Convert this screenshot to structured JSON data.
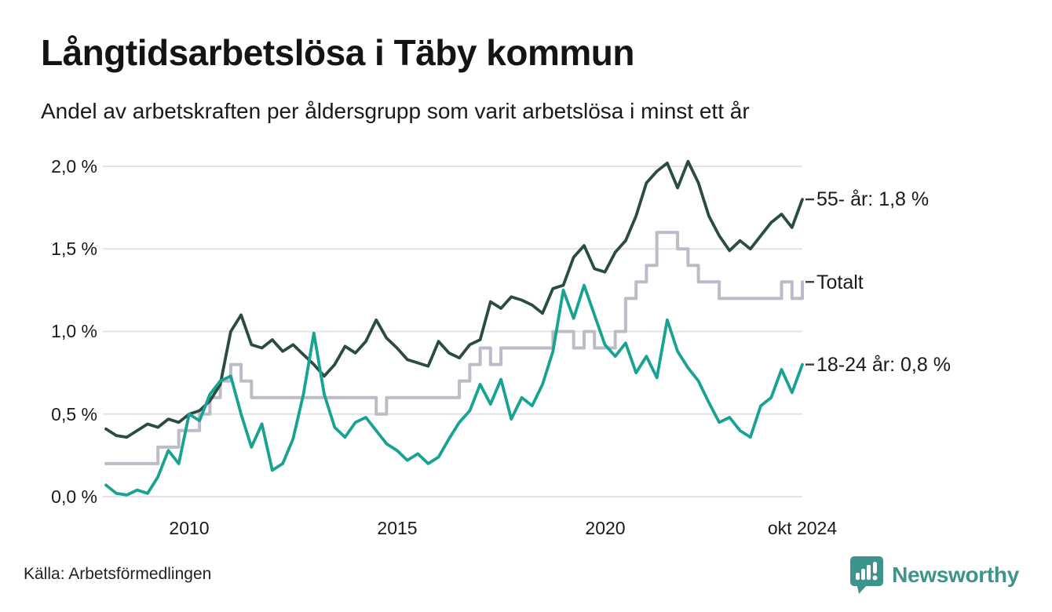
{
  "chart_data": {
    "type": "line",
    "title": "Långtidsarbetslösa i Täby kommun",
    "subtitle": "Andel av arbetskraften per åldersgrupp som varit arbetslösa i minst ett år",
    "grid": "horizontal",
    "legend_position": "right-end-labels",
    "y_range": [
      0.0,
      2.0
    ],
    "x_range": [
      2008.0,
      2024.75
    ],
    "y_ticks": [
      "2,0 %",
      "1,5 %",
      "1,0 %",
      "0,5 %",
      "0,0 %"
    ],
    "y_tick_values": [
      2.0,
      1.5,
      1.0,
      0.5,
      0.0
    ],
    "x_ticks": [
      {
        "label": "2010",
        "year": 2010
      },
      {
        "label": "2015",
        "year": 2015
      },
      {
        "label": "2020",
        "year": 2020
      },
      {
        "label": "okt 2024",
        "year": 2024.75
      }
    ],
    "x": [
      2008.0,
      2008.25,
      2008.5,
      2008.75,
      2009.0,
      2009.25,
      2009.5,
      2009.75,
      2010.0,
      2010.25,
      2010.5,
      2010.75,
      2011.0,
      2011.25,
      2011.5,
      2011.75,
      2012.0,
      2012.25,
      2012.5,
      2012.75,
      2013.0,
      2013.25,
      2013.5,
      2013.75,
      2014.0,
      2014.25,
      2014.5,
      2014.75,
      2015.0,
      2015.25,
      2015.5,
      2015.75,
      2016.0,
      2016.25,
      2016.5,
      2016.75,
      2017.0,
      2017.25,
      2017.5,
      2017.75,
      2018.0,
      2018.25,
      2018.5,
      2018.75,
      2019.0,
      2019.25,
      2019.5,
      2019.75,
      2020.0,
      2020.25,
      2020.5,
      2020.75,
      2021.0,
      2021.25,
      2021.5,
      2021.75,
      2022.0,
      2022.25,
      2022.5,
      2022.75,
      2023.0,
      2023.25,
      2023.5,
      2023.75,
      2024.0,
      2024.25,
      2024.5,
      2024.75
    ],
    "series": [
      {
        "id": "totalt",
        "name": "Totalt",
        "label": "Totalt",
        "color": "#bcbbc8",
        "width": 4,
        "step": true,
        "end_value": 1.3,
        "values": [
          0.2,
          0.2,
          0.2,
          0.2,
          0.2,
          0.3,
          0.3,
          0.4,
          0.4,
          0.5,
          0.6,
          0.7,
          0.8,
          0.7,
          0.6,
          0.6,
          0.6,
          0.6,
          0.6,
          0.6,
          0.6,
          0.6,
          0.6,
          0.6,
          0.6,
          0.6,
          0.5,
          0.6,
          0.6,
          0.6,
          0.6,
          0.6,
          0.6,
          0.6,
          0.7,
          0.8,
          0.9,
          0.8,
          0.9,
          0.9,
          0.9,
          0.9,
          0.9,
          1.0,
          1.0,
          0.9,
          1.0,
          0.9,
          0.9,
          1.0,
          1.2,
          1.3,
          1.4,
          1.6,
          1.6,
          1.5,
          1.4,
          1.3,
          1.3,
          1.2,
          1.2,
          1.2,
          1.2,
          1.2,
          1.2,
          1.3,
          1.2,
          1.3
        ]
      },
      {
        "id": "55-ar",
        "name": "55- år",
        "label": "55- år: 1,8 %",
        "color": "#2b4c42",
        "width": 3.8,
        "step": false,
        "end_value": 1.8,
        "values": [
          0.41,
          0.37,
          0.36,
          0.4,
          0.44,
          0.42,
          0.47,
          0.45,
          0.5,
          0.52,
          0.58,
          0.68,
          1.0,
          1.1,
          0.92,
          0.9,
          0.95,
          0.88,
          0.92,
          0.86,
          0.8,
          0.73,
          0.8,
          0.91,
          0.87,
          0.94,
          1.07,
          0.96,
          0.9,
          0.83,
          0.81,
          0.79,
          0.94,
          0.87,
          0.84,
          0.92,
          0.95,
          1.18,
          1.14,
          1.21,
          1.19,
          1.16,
          1.11,
          1.26,
          1.28,
          1.45,
          1.52,
          1.38,
          1.36,
          1.48,
          1.55,
          1.7,
          1.9,
          1.97,
          2.02,
          1.87,
          2.03,
          1.9,
          1.7,
          1.58,
          1.49,
          1.55,
          1.5,
          1.58,
          1.66,
          1.71,
          1.63,
          1.8
        ]
      },
      {
        "id": "18-24-ar",
        "name": "18-24 år",
        "label": "18-24 år: 0,8 %",
        "color": "#17a292",
        "width": 3.8,
        "step": false,
        "end_value": 0.8,
        "values": [
          0.07,
          0.02,
          0.01,
          0.04,
          0.02,
          0.12,
          0.28,
          0.2,
          0.5,
          0.46,
          0.62,
          0.7,
          0.73,
          0.5,
          0.3,
          0.44,
          0.16,
          0.2,
          0.35,
          0.62,
          0.99,
          0.62,
          0.42,
          0.36,
          0.45,
          0.48,
          0.4,
          0.32,
          0.28,
          0.22,
          0.26,
          0.2,
          0.24,
          0.35,
          0.45,
          0.52,
          0.68,
          0.56,
          0.71,
          0.47,
          0.6,
          0.55,
          0.68,
          0.88,
          1.25,
          1.08,
          1.28,
          1.1,
          0.92,
          0.85,
          0.93,
          0.75,
          0.85,
          0.72,
          1.07,
          0.88,
          0.78,
          0.7,
          0.57,
          0.45,
          0.48,
          0.4,
          0.36,
          0.55,
          0.6,
          0.77,
          0.63,
          0.8
        ]
      }
    ],
    "colors": {
      "grid": "#e4e4e4",
      "end_tick": "#3a3a3a",
      "text": "#1a1a1a"
    }
  },
  "footer": {
    "source": "Källa: Arbetsförmedlingen",
    "brand": "Newsworthy",
    "brand_icon": "speech-bubble-bar-chart",
    "brand_color": "#3c948c"
  }
}
